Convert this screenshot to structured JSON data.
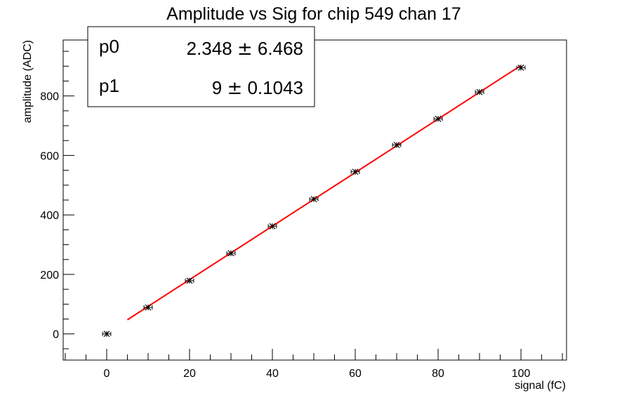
{
  "chart_data": {
    "type": "scatter",
    "title": "Amplitude vs Sig for chip 549 chan 17",
    "xlabel": "signal (fC)",
    "ylabel": "amplitude (ADC)",
    "xlim": [
      -10.5,
      111
    ],
    "ylim": [
      -88,
      988
    ],
    "x_ticks": [
      0,
      20,
      40,
      60,
      80,
      100
    ],
    "y_ticks": [
      0,
      200,
      400,
      600,
      800
    ],
    "grid": false,
    "points": [
      {
        "x": 0,
        "y": 0
      },
      {
        "x": 10,
        "y": 89
      },
      {
        "x": 20,
        "y": 179
      },
      {
        "x": 30,
        "y": 271
      },
      {
        "x": 40,
        "y": 362
      },
      {
        "x": 50,
        "y": 453
      },
      {
        "x": 60,
        "y": 545
      },
      {
        "x": 70,
        "y": 635
      },
      {
        "x": 80,
        "y": 723
      },
      {
        "x": 90,
        "y": 813
      },
      {
        "x": 100,
        "y": 895
      }
    ],
    "x_error": 1,
    "fit": {
      "function": "p0 + p1*x",
      "color": "#ff0000",
      "x_range": [
        5,
        100
      ],
      "params": [
        {
          "name": "p0",
          "value": "2.348",
          "error": "6.468",
          "num": 2.348
        },
        {
          "name": "p1",
          "value": "9",
          "error": "0.1043",
          "num": 9
        }
      ]
    },
    "stats_box": "top-left",
    "pm_symbol": "±"
  }
}
